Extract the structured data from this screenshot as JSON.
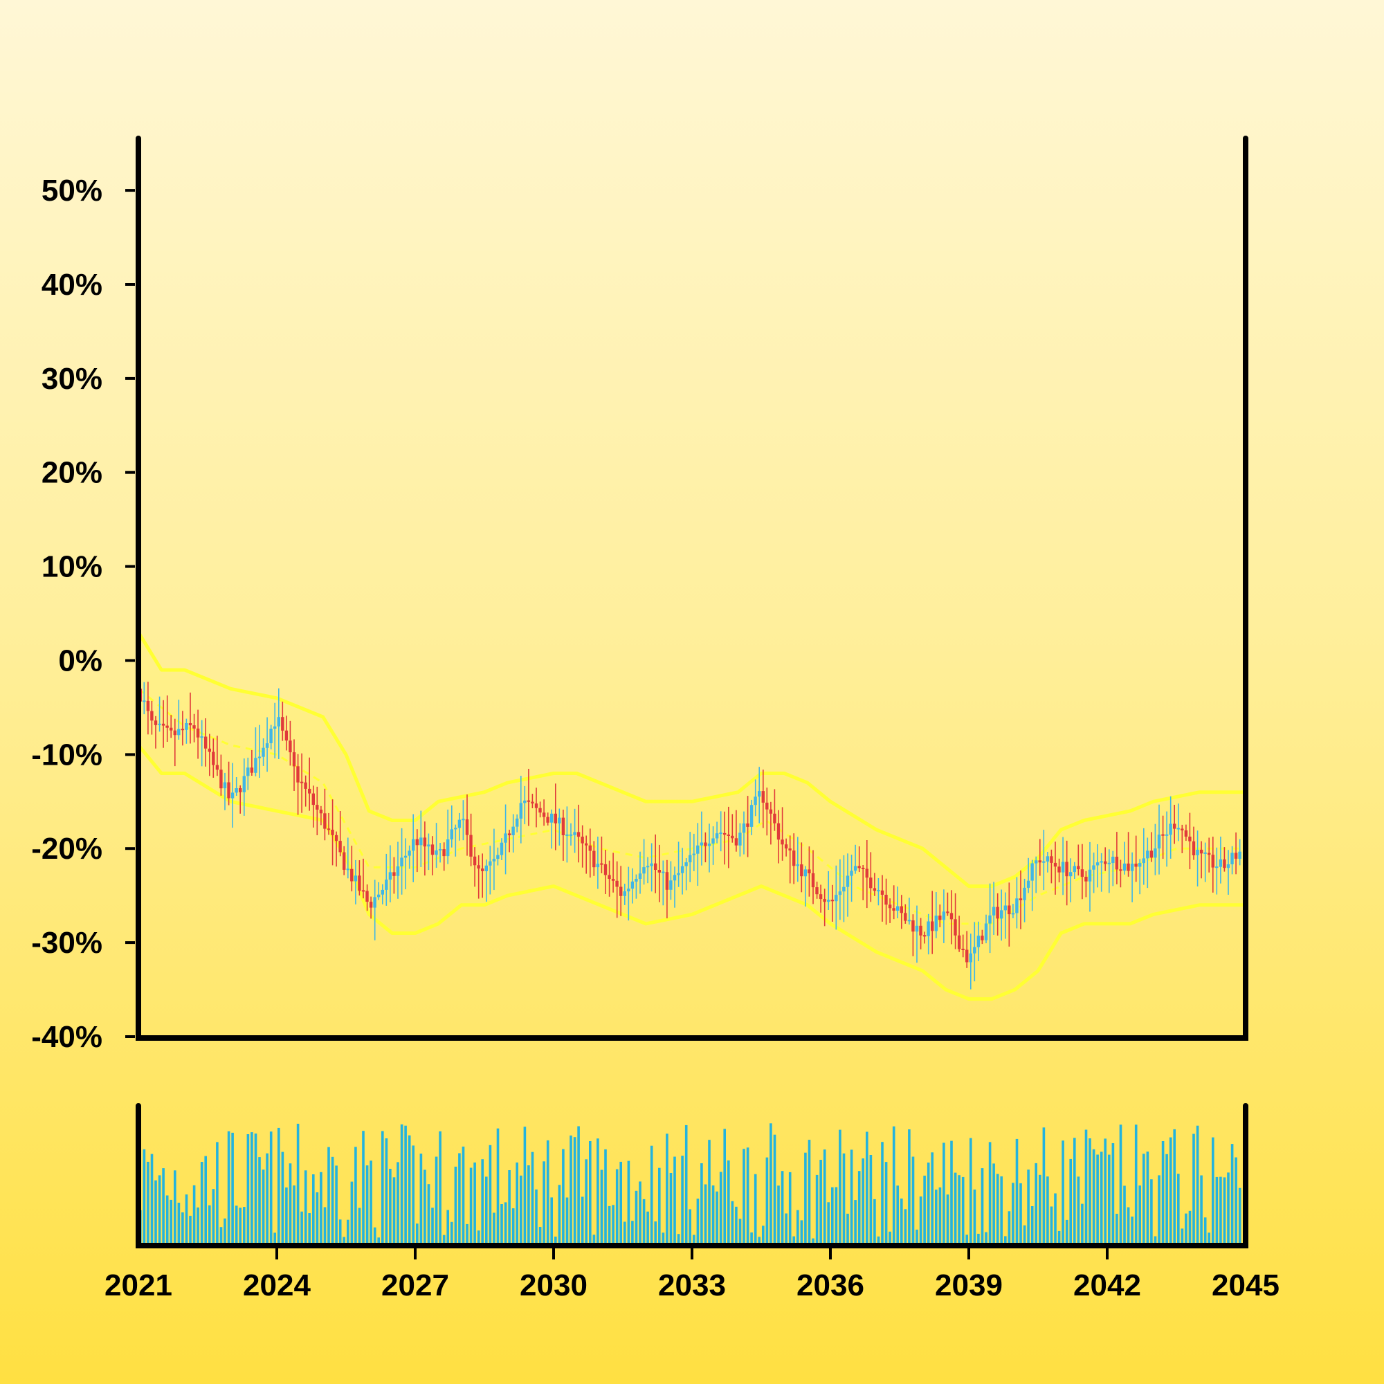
{
  "chart_data": {
    "type": "candlestick",
    "x_ticks": [
      "2021",
      "2024",
      "2027",
      "2030",
      "2033",
      "2036",
      "2039",
      "2042",
      "2045"
    ],
    "xlim": [
      2021,
      2045
    ],
    "y_ticks": [
      "50%",
      "40%",
      "30%",
      "20%",
      "10%",
      "0%",
      "-10%",
      "-20%",
      "-30%",
      "-40%"
    ],
    "ylim": [
      -40,
      57
    ],
    "grid": false,
    "legend": "none",
    "colors": {
      "up": "#3fb6e6",
      "down": "#e03a3a",
      "band": "#ffff33",
      "volume": "#23b3de",
      "axis": "#000000"
    },
    "price_path": [
      [
        2021.0,
        -3
      ],
      [
        2021.3,
        -7
      ],
      [
        2021.7,
        -8
      ],
      [
        2022.2,
        -7
      ],
      [
        2022.6,
        -11
      ],
      [
        2023.0,
        -15
      ],
      [
        2023.5,
        -11
      ],
      [
        2024.0,
        -6
      ],
      [
        2024.4,
        -12
      ],
      [
        2025.0,
        -17
      ],
      [
        2025.5,
        -22
      ],
      [
        2026.0,
        -26
      ],
      [
        2026.5,
        -23
      ],
      [
        2027.0,
        -19
      ],
      [
        2027.5,
        -21
      ],
      [
        2028.0,
        -17
      ],
      [
        2028.4,
        -23
      ],
      [
        2028.8,
        -21
      ],
      [
        2029.3,
        -15
      ],
      [
        2030.0,
        -17
      ],
      [
        2030.5,
        -19
      ],
      [
        2031.0,
        -22
      ],
      [
        2031.5,
        -25
      ],
      [
        2032.0,
        -21
      ],
      [
        2032.5,
        -24
      ],
      [
        2033.0,
        -21
      ],
      [
        2033.5,
        -18
      ],
      [
        2034.0,
        -19
      ],
      [
        2034.5,
        -14
      ],
      [
        2035.0,
        -20
      ],
      [
        2035.5,
        -23
      ],
      [
        2036.0,
        -26
      ],
      [
        2036.5,
        -22
      ],
      [
        2037.0,
        -24
      ],
      [
        2037.5,
        -27
      ],
      [
        2038.0,
        -29
      ],
      [
        2038.5,
        -27
      ],
      [
        2039.0,
        -32
      ],
      [
        2039.5,
        -27
      ],
      [
        2040.0,
        -26
      ],
      [
        2040.5,
        -21
      ],
      [
        2041.0,
        -22
      ],
      [
        2041.5,
        -23
      ],
      [
        2042.0,
        -21
      ],
      [
        2042.5,
        -22
      ],
      [
        2043.0,
        -20
      ],
      [
        2043.5,
        -17
      ],
      [
        2044.0,
        -21
      ],
      [
        2044.5,
        -22
      ],
      [
        2044.95,
        -20
      ]
    ],
    "moving_average": [
      [
        2021.0,
        -3
      ],
      [
        2022.0,
        -7
      ],
      [
        2023.0,
        -9
      ],
      [
        2024.0,
        -10
      ],
      [
        2025.0,
        -13
      ],
      [
        2026.0,
        -22
      ],
      [
        2027.0,
        -22
      ],
      [
        2028.0,
        -20
      ],
      [
        2029.0,
        -19
      ],
      [
        2030.0,
        -18
      ],
      [
        2031.0,
        -20
      ],
      [
        2032.0,
        -21
      ],
      [
        2033.0,
        -20
      ],
      [
        2034.0,
        -19
      ],
      [
        2034.6,
        -17
      ],
      [
        2035.5,
        -20
      ],
      [
        2036.5,
        -24
      ],
      [
        2037.5,
        -26
      ],
      [
        2038.5,
        -28
      ],
      [
        2039.5,
        -28
      ],
      [
        2040.5,
        -25
      ],
      [
        2041.5,
        -23
      ],
      [
        2042.5,
        -22
      ],
      [
        2043.5,
        -20
      ],
      [
        2045.0,
        -20
      ]
    ],
    "upper_band": [
      [
        2021.0,
        3
      ],
      [
        2021.5,
        -1
      ],
      [
        2022.0,
        -1
      ],
      [
        2023.0,
        -3
      ],
      [
        2024.0,
        -4
      ],
      [
        2025.0,
        -6
      ],
      [
        2025.5,
        -10
      ],
      [
        2026.0,
        -16
      ],
      [
        2026.5,
        -17
      ],
      [
        2027.0,
        -17
      ],
      [
        2027.5,
        -15
      ],
      [
        2028.5,
        -14
      ],
      [
        2029.0,
        -13
      ],
      [
        2030.0,
        -12
      ],
      [
        2030.5,
        -12
      ],
      [
        2031.0,
        -13
      ],
      [
        2032.0,
        -15
      ],
      [
        2033.0,
        -15
      ],
      [
        2034.0,
        -14
      ],
      [
        2034.5,
        -12
      ],
      [
        2035.0,
        -12
      ],
      [
        2035.5,
        -13
      ],
      [
        2036.0,
        -15
      ],
      [
        2037.0,
        -18
      ],
      [
        2038.0,
        -20
      ],
      [
        2038.5,
        -22
      ],
      [
        2039.0,
        -24
      ],
      [
        2039.5,
        -24
      ],
      [
        2040.0,
        -23
      ],
      [
        2040.5,
        -21
      ],
      [
        2041.0,
        -18
      ],
      [
        2041.5,
        -17
      ],
      [
        2042.5,
        -16
      ],
      [
        2043.0,
        -15
      ],
      [
        2044.0,
        -14
      ],
      [
        2045.0,
        -14
      ]
    ],
    "lower_band": [
      [
        2021.0,
        -9
      ],
      [
        2021.5,
        -12
      ],
      [
        2022.0,
        -12
      ],
      [
        2023.0,
        -15
      ],
      [
        2024.0,
        -16
      ],
      [
        2025.0,
        -17
      ],
      [
        2025.5,
        -21
      ],
      [
        2026.0,
        -27
      ],
      [
        2026.5,
        -29
      ],
      [
        2027.0,
        -29
      ],
      [
        2027.5,
        -28
      ],
      [
        2028.0,
        -26
      ],
      [
        2028.5,
        -26
      ],
      [
        2029.0,
        -25
      ],
      [
        2030.0,
        -24
      ],
      [
        2030.5,
        -25
      ],
      [
        2031.0,
        -26
      ],
      [
        2032.0,
        -28
      ],
      [
        2033.0,
        -27
      ],
      [
        2034.0,
        -25
      ],
      [
        2034.5,
        -24
      ],
      [
        2035.0,
        -25
      ],
      [
        2035.5,
        -26
      ],
      [
        2036.0,
        -28
      ],
      [
        2037.0,
        -31
      ],
      [
        2038.0,
        -33
      ],
      [
        2038.5,
        -35
      ],
      [
        2039.0,
        -36
      ],
      [
        2039.5,
        -36
      ],
      [
        2040.0,
        -35
      ],
      [
        2040.5,
        -33
      ],
      [
        2041.0,
        -29
      ],
      [
        2041.5,
        -28
      ],
      [
        2042.5,
        -28
      ],
      [
        2043.0,
        -27
      ],
      [
        2044.0,
        -26
      ],
      [
        2045.0,
        -26
      ]
    ]
  }
}
